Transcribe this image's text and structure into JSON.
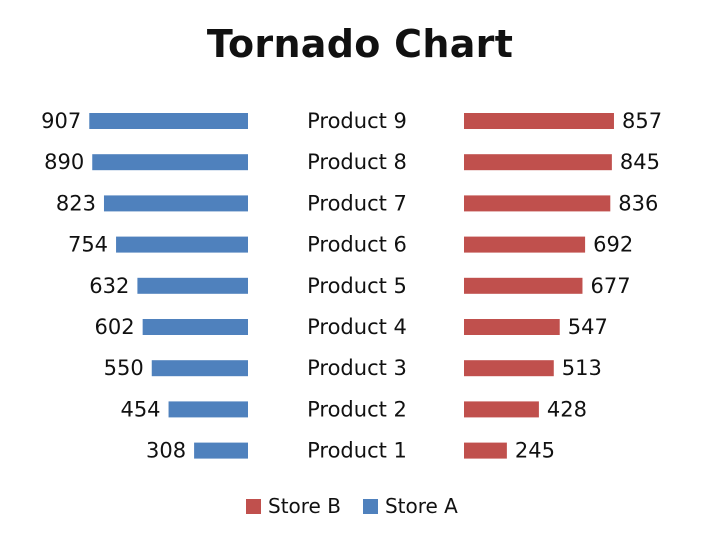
{
  "chart_data": {
    "type": "bar",
    "title": "Tornado Chart",
    "categories": [
      "Product 9",
      "Product 8",
      "Product 7",
      "Product 6",
      "Product 5",
      "Product 4",
      "Product 3",
      "Product 2",
      "Product 1"
    ],
    "series": [
      {
        "name": "Store A",
        "color": "#4f81bd",
        "values": [
          907,
          890,
          823,
          754,
          632,
          602,
          550,
          454,
          308
        ]
      },
      {
        "name": "Store B",
        "color": "#c0504d",
        "values": [
          857,
          845,
          836,
          692,
          677,
          547,
          513,
          428,
          245
        ]
      }
    ],
    "xlim": [
      0,
      1400
    ],
    "grid": false,
    "legend": [
      "Store B",
      "Store A"
    ],
    "legend_position": "bottom"
  }
}
